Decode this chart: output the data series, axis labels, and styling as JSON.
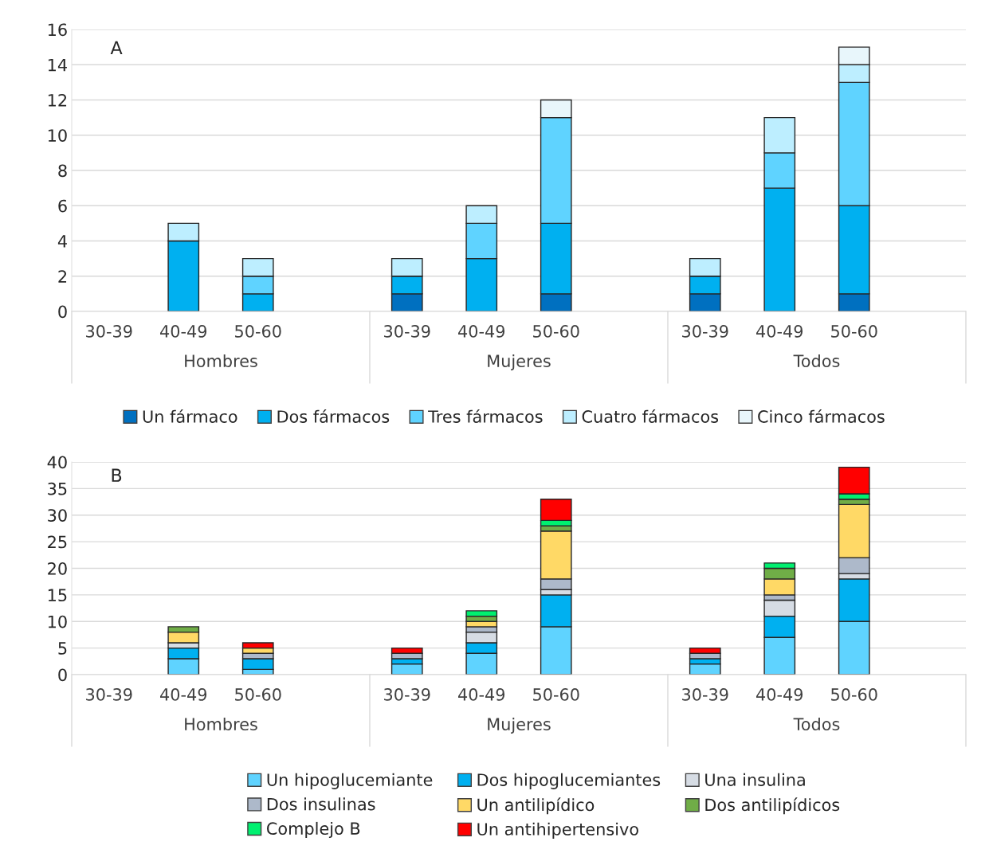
{
  "chart_data": [
    {
      "type": "bar",
      "title": "A",
      "stacked": true,
      "categories": [
        "30-39",
        "40-49",
        "50-60",
        "30-39",
        "40-49",
        "50-60",
        "30-39",
        "40-49",
        "50-60"
      ],
      "annotations": [
        "Hombres",
        "Mujeres",
        "Todos"
      ],
      "series": [
        {
          "name": "Un fármaco",
          "color": "#0070c0",
          "values": [
            null,
            null,
            null,
            1,
            null,
            1,
            1,
            null,
            1
          ]
        },
        {
          "name": "Dos fármacos",
          "color": "#00b0f0",
          "values": [
            null,
            4,
            1,
            1,
            3,
            4,
            1,
            7,
            5
          ]
        },
        {
          "name": "Tres fármacos",
          "color": "#5fd3ff",
          "values": [
            null,
            null,
            1,
            null,
            2,
            6,
            null,
            2,
            7
          ]
        },
        {
          "name": "Cuatro fármacos",
          "color": "#bdeeff",
          "values": [
            null,
            1,
            1,
            1,
            1,
            null,
            1,
            2,
            1
          ]
        },
        {
          "name": "Cinco fármacos",
          "color": "#e8f6fb",
          "values": [
            null,
            null,
            null,
            null,
            null,
            1,
            null,
            null,
            1
          ]
        }
      ],
      "ylim": [
        0,
        16
      ],
      "yticks": [
        0,
        2,
        4,
        6,
        8,
        10,
        12,
        14,
        16
      ],
      "grid": "y",
      "legend": "bottom"
    },
    {
      "type": "bar",
      "title": "B",
      "stacked": true,
      "categories": [
        "30-39",
        "40-49",
        "50-60",
        "30-39",
        "40-49",
        "50-60",
        "30-39",
        "40-49",
        "50-60"
      ],
      "annotations": [
        "Hombres",
        "Mujeres",
        "Todos"
      ],
      "series": [
        {
          "name": "Un hipoglucemiante",
          "color": "#5fd3ff",
          "values": [
            null,
            3,
            1,
            2,
            4,
            9,
            2,
            7,
            10
          ]
        },
        {
          "name": "Dos hipoglucemiantes",
          "color": "#00b0f0",
          "values": [
            null,
            2,
            2,
            1,
            2,
            6,
            1,
            4,
            8
          ]
        },
        {
          "name": "Una insulina",
          "color": "#d6dce4",
          "values": [
            null,
            1,
            null,
            null,
            2,
            1,
            null,
            3,
            1
          ]
        },
        {
          "name": "Dos insulinas",
          "color": "#adb9ca",
          "values": [
            null,
            null,
            1,
            1,
            1,
            2,
            1,
            1,
            3
          ]
        },
        {
          "name": "Un antilipídico",
          "color": "#ffd966",
          "values": [
            null,
            2,
            1,
            null,
            1,
            9,
            null,
            3,
            10
          ]
        },
        {
          "name": "Dos antilipídicos",
          "color": "#70ad47",
          "values": [
            null,
            1,
            null,
            null,
            1,
            1,
            null,
            2,
            1
          ]
        },
        {
          "name": "Complejo B",
          "color": "#00f070",
          "values": [
            null,
            null,
            null,
            null,
            1,
            1,
            null,
            1,
            1
          ]
        },
        {
          "name": "Un antihipertensivo",
          "color": "#ff0000",
          "values": [
            null,
            null,
            1,
            1,
            null,
            4,
            1,
            null,
            5
          ]
        }
      ],
      "ylim": [
        0,
        40
      ],
      "yticks": [
        0,
        5,
        10,
        15,
        20,
        25,
        30,
        35,
        40
      ],
      "grid": "y",
      "legend": "bottom"
    }
  ]
}
